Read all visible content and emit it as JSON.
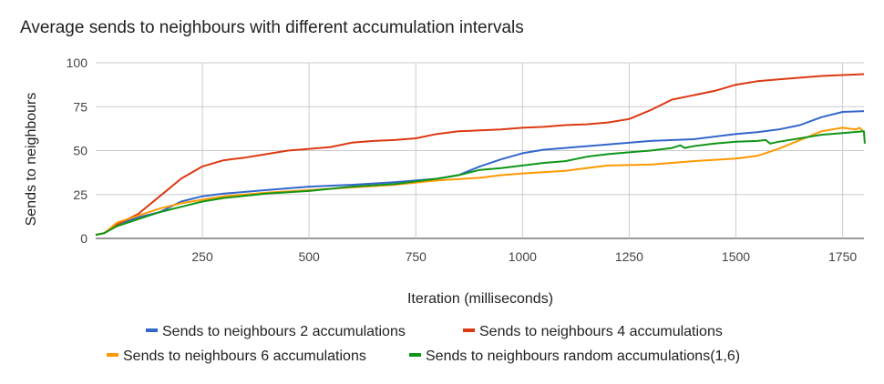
{
  "chart_data": {
    "type": "line",
    "title": "Average sends to neighbours with different accumulation intervals",
    "xlabel": "Iteration (milliseconds)",
    "ylabel": "Sends to neighbours",
    "xlim": [
      0,
      1800
    ],
    "ylim": [
      0,
      100
    ],
    "xticks": [
      250,
      500,
      750,
      1000,
      1250,
      1500,
      1750
    ],
    "yticks": [
      0,
      25,
      50,
      75,
      100
    ],
    "grid": true,
    "legend_position": "bottom",
    "series": [
      {
        "name": "Sends to neighbours 2 accumulations",
        "color": "#3366cc",
        "points": [
          [
            0,
            2
          ],
          [
            20,
            3
          ],
          [
            50,
            8
          ],
          [
            100,
            12
          ],
          [
            150,
            15
          ],
          [
            200,
            21
          ],
          [
            250,
            24
          ],
          [
            300,
            25.5
          ],
          [
            400,
            27.5
          ],
          [
            500,
            29.5
          ],
          [
            600,
            30.5
          ],
          [
            700,
            32
          ],
          [
            800,
            34
          ],
          [
            850,
            36
          ],
          [
            900,
            41
          ],
          [
            950,
            45
          ],
          [
            1000,
            48.5
          ],
          [
            1050,
            50.5
          ],
          [
            1100,
            51.5
          ],
          [
            1200,
            53.5
          ],
          [
            1300,
            55.5
          ],
          [
            1400,
            56.5
          ],
          [
            1500,
            59.5
          ],
          [
            1550,
            60.5
          ],
          [
            1600,
            62
          ],
          [
            1650,
            64.5
          ],
          [
            1700,
            69
          ],
          [
            1750,
            72
          ],
          [
            1800,
            72.5
          ]
        ]
      },
      {
        "name": "Sends to neighbours 4 accumulations",
        "color": "#dc3912",
        "points": [
          [
            0,
            2
          ],
          [
            20,
            3
          ],
          [
            50,
            8
          ],
          [
            100,
            14
          ],
          [
            150,
            24
          ],
          [
            200,
            34
          ],
          [
            250,
            41
          ],
          [
            300,
            44.5
          ],
          [
            350,
            46
          ],
          [
            400,
            48
          ],
          [
            450,
            50
          ],
          [
            500,
            51
          ],
          [
            550,
            52
          ],
          [
            600,
            54.5
          ],
          [
            650,
            55.5
          ],
          [
            700,
            56
          ],
          [
            750,
            57
          ],
          [
            800,
            59.5
          ],
          [
            850,
            61
          ],
          [
            900,
            61.5
          ],
          [
            950,
            62
          ],
          [
            1000,
            63
          ],
          [
            1050,
            63.5
          ],
          [
            1100,
            64.5
          ],
          [
            1150,
            65
          ],
          [
            1200,
            66
          ],
          [
            1250,
            68
          ],
          [
            1300,
            73
          ],
          [
            1350,
            79
          ],
          [
            1400,
            81.5
          ],
          [
            1450,
            84
          ],
          [
            1500,
            87.5
          ],
          [
            1550,
            89.5
          ],
          [
            1600,
            90.5
          ],
          [
            1650,
            91.5
          ],
          [
            1700,
            92.5
          ],
          [
            1750,
            93
          ],
          [
            1800,
            93.5
          ]
        ]
      },
      {
        "name": "Sends to neighbours 6 accumulations",
        "color": "#ff9900",
        "points": [
          [
            0,
            2
          ],
          [
            20,
            3
          ],
          [
            50,
            9
          ],
          [
            100,
            13
          ],
          [
            150,
            17
          ],
          [
            200,
            20
          ],
          [
            250,
            22
          ],
          [
            300,
            24
          ],
          [
            400,
            26
          ],
          [
            500,
            27.5
          ],
          [
            600,
            29
          ],
          [
            700,
            30.5
          ],
          [
            800,
            33
          ],
          [
            900,
            34.5
          ],
          [
            950,
            36
          ],
          [
            1000,
            37
          ],
          [
            1100,
            38.5
          ],
          [
            1150,
            40
          ],
          [
            1200,
            41.5
          ],
          [
            1300,
            42
          ],
          [
            1350,
            43
          ],
          [
            1400,
            44
          ],
          [
            1500,
            45.5
          ],
          [
            1550,
            47
          ],
          [
            1600,
            51
          ],
          [
            1650,
            56
          ],
          [
            1700,
            61
          ],
          [
            1750,
            63
          ],
          [
            1780,
            62
          ],
          [
            1790,
            63
          ],
          [
            1800,
            60.5
          ]
        ]
      },
      {
        "name": "Sends to neighbours random accumulations(1,6)",
        "color": "#109618",
        "points": [
          [
            0,
            2
          ],
          [
            20,
            3
          ],
          [
            50,
            7
          ],
          [
            100,
            11
          ],
          [
            150,
            15
          ],
          [
            200,
            18
          ],
          [
            250,
            21
          ],
          [
            300,
            23
          ],
          [
            400,
            25.5
          ],
          [
            500,
            27
          ],
          [
            600,
            29.5
          ],
          [
            700,
            31
          ],
          [
            800,
            34
          ],
          [
            850,
            36
          ],
          [
            900,
            39
          ],
          [
            950,
            40
          ],
          [
            1000,
            41.5
          ],
          [
            1050,
            43
          ],
          [
            1100,
            44
          ],
          [
            1150,
            46.5
          ],
          [
            1200,
            48
          ],
          [
            1250,
            49
          ],
          [
            1300,
            50
          ],
          [
            1350,
            51.5
          ],
          [
            1370,
            53
          ],
          [
            1380,
            51.5
          ],
          [
            1400,
            52.5
          ],
          [
            1450,
            54
          ],
          [
            1500,
            55
          ],
          [
            1550,
            55.5
          ],
          [
            1570,
            56
          ],
          [
            1580,
            54
          ],
          [
            1600,
            55
          ],
          [
            1650,
            57
          ],
          [
            1700,
            59
          ],
          [
            1750,
            60
          ],
          [
            1800,
            61
          ],
          [
            1802,
            54
          ]
        ]
      }
    ]
  }
}
